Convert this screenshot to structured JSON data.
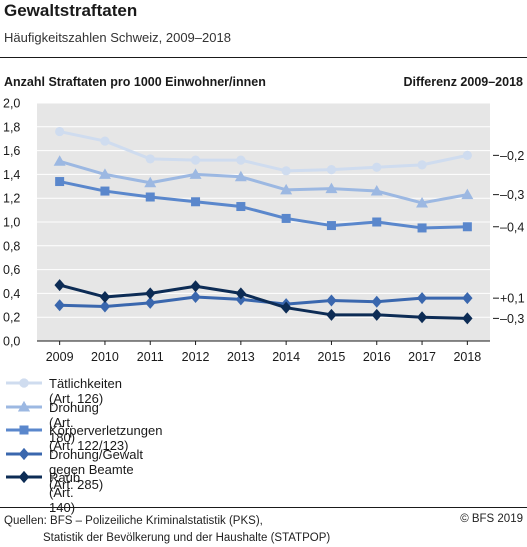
{
  "header": {
    "title": "Gewaltstraftaten",
    "subtitle": "Häufigkeitszahlen Schweiz, 2009–2018"
  },
  "chart_data": {
    "type": "line",
    "title": "Gewaltstraftaten",
    "subtitle": "Häufigkeitszahlen Schweiz, 2009–2018",
    "ylabel": "Anzahl Straftaten pro 1000 Einwohner/innen",
    "right_label": "Differenz 2009–2018",
    "xlabel": "",
    "categories": [
      "2009",
      "2010",
      "2011",
      "2012",
      "2013",
      "2014",
      "2015",
      "2016",
      "2017",
      "2018"
    ],
    "ylim": [
      0,
      2.0
    ],
    "yticks": [
      0,
      0.2,
      0.4,
      0.6,
      0.8,
      1.0,
      1.2,
      1.4,
      1.6,
      1.8,
      2.0
    ],
    "ytick_labels": [
      "0,0",
      "0,2",
      "0,4",
      "0,6",
      "0,8",
      "1,0",
      "1,2",
      "1,4",
      "1,6",
      "1,8",
      "2,0"
    ],
    "grid": true,
    "legend_position": "bottom",
    "series": [
      {
        "name": "Tätlichkeiten (Art. 126)",
        "color": "#cfdcef",
        "marker": "circle",
        "diff": "–0,2",
        "values": [
          1.76,
          1.68,
          1.53,
          1.52,
          1.52,
          1.43,
          1.44,
          1.46,
          1.48,
          1.56
        ]
      },
      {
        "name": "Drohung (Art. 180)",
        "color": "#9cb8e2",
        "marker": "triangle",
        "diff": "–0,3",
        "values": [
          1.51,
          1.4,
          1.33,
          1.4,
          1.38,
          1.27,
          1.28,
          1.26,
          1.16,
          1.23
        ]
      },
      {
        "name": "Körperverletzungen (Art. 122/123)",
        "color": "#5a87cc",
        "marker": "square",
        "diff": "–0,4",
        "values": [
          1.34,
          1.26,
          1.21,
          1.17,
          1.13,
          1.03,
          0.97,
          1.0,
          0.95,
          0.96
        ]
      },
      {
        "name": "Drohung/Gewalt gegen Beamte (Art. 285)",
        "color": "#3a67ae",
        "marker": "diamond",
        "diff": "+0,1",
        "values": [
          0.3,
          0.29,
          0.32,
          0.37,
          0.35,
          0.31,
          0.34,
          0.33,
          0.36,
          0.36
        ]
      },
      {
        "name": "Raub (Art. 140)",
        "color": "#0d2c55",
        "marker": "diamond",
        "diff": "–0,3",
        "values": [
          0.47,
          0.37,
          0.4,
          0.46,
          0.4,
          0.28,
          0.22,
          0.22,
          0.2,
          0.19
        ]
      }
    ]
  },
  "footer": {
    "source_line1": "Quellen: BFS – Polizeiliche Kriminalstatistik (PKS),",
    "source_line2": "Statistik der Bevölkerung und der Haushalte (STATPOP)",
    "copyright": "© BFS 2019"
  }
}
